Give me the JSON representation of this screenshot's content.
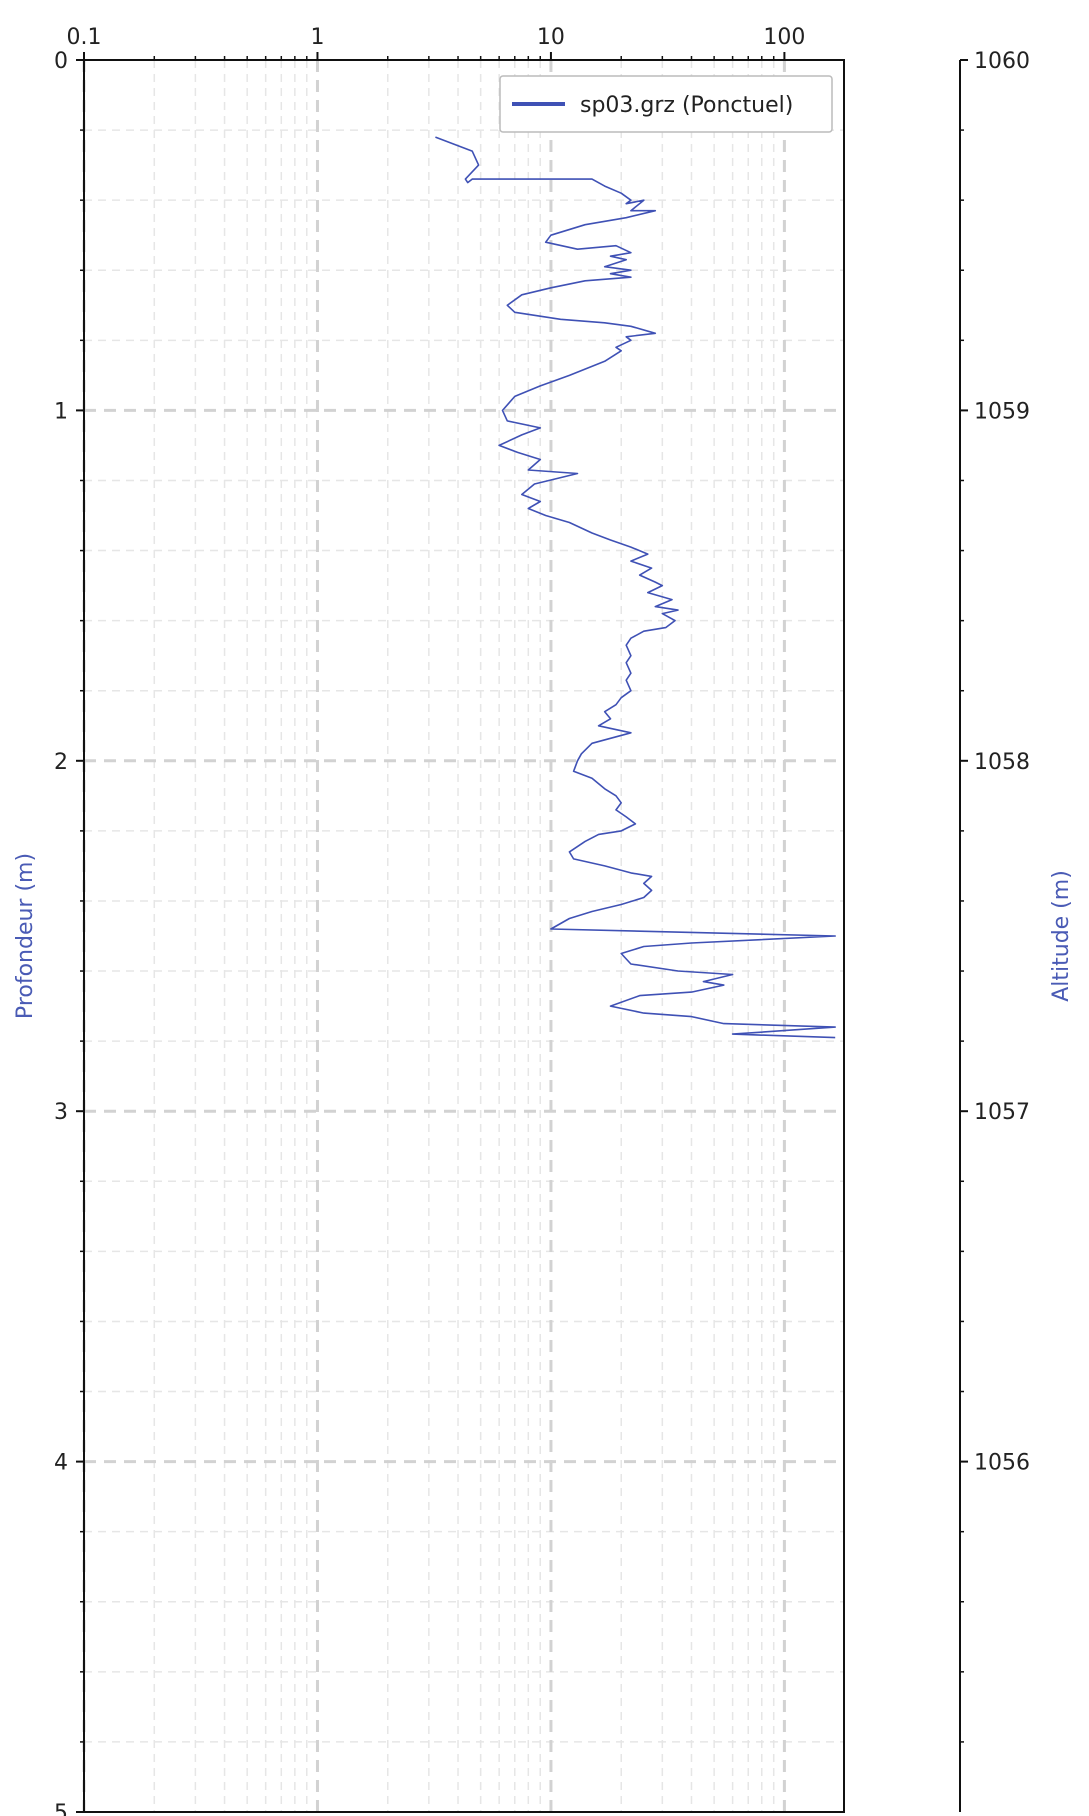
{
  "chart_data": {
    "type": "line",
    "title": "",
    "x_axis": {
      "scale": "log",
      "position": "top",
      "range": [
        0.1,
        180
      ],
      "ticks": [
        0.1,
        1,
        10,
        100
      ],
      "tick_labels": [
        "0.1",
        "1",
        "10",
        "100"
      ],
      "label": ""
    },
    "y_axis_left": {
      "label": "Profondeur (m)",
      "range": [
        0,
        5
      ],
      "inverted": true,
      "ticks": [
        0,
        1,
        2,
        3,
        4,
        5
      ],
      "tick_labels": [
        "0",
        "1",
        "2",
        "3",
        "4",
        "5"
      ]
    },
    "y_axis_right": {
      "label": "Altitude (m)",
      "range": [
        1060,
        1055
      ],
      "ticks": [
        1060,
        1059,
        1058,
        1057,
        1056
      ],
      "tick_labels": [
        "1060",
        "1059",
        "1058",
        "1057",
        "1056"
      ]
    },
    "grid": true,
    "legend": {
      "placement": "top-right"
    },
    "series": [
      {
        "name": "sp03.grz (Ponctuel)",
        "color": "#3f51b5",
        "points": [
          [
            3.2,
            0.22
          ],
          [
            4.6,
            0.26
          ],
          [
            4.9,
            0.3
          ],
          [
            4.3,
            0.34
          ],
          [
            4.4,
            0.35
          ],
          [
            4.6,
            0.34
          ],
          [
            15,
            0.34
          ],
          [
            17,
            0.36
          ],
          [
            20,
            0.38
          ],
          [
            22,
            0.4
          ],
          [
            21,
            0.41
          ],
          [
            25,
            0.4
          ],
          [
            22,
            0.43
          ],
          [
            28,
            0.43
          ],
          [
            21,
            0.45
          ],
          [
            14,
            0.47
          ],
          [
            10,
            0.5
          ],
          [
            9.5,
            0.52
          ],
          [
            13,
            0.54
          ],
          [
            19,
            0.53
          ],
          [
            22,
            0.55
          ],
          [
            18,
            0.56
          ],
          [
            21,
            0.57
          ],
          [
            17,
            0.59
          ],
          [
            22,
            0.6
          ],
          [
            18,
            0.61
          ],
          [
            22,
            0.62
          ],
          [
            14,
            0.63
          ],
          [
            10,
            0.65
          ],
          [
            7.5,
            0.67
          ],
          [
            6.5,
            0.7
          ],
          [
            7,
            0.72
          ],
          [
            11,
            0.74
          ],
          [
            17,
            0.75
          ],
          [
            22,
            0.76
          ],
          [
            28,
            0.78
          ],
          [
            21,
            0.79
          ],
          [
            22,
            0.8
          ],
          [
            19,
            0.82
          ],
          [
            20,
            0.83
          ],
          [
            17,
            0.86
          ],
          [
            12,
            0.9
          ],
          [
            9,
            0.93
          ],
          [
            7,
            0.96
          ],
          [
            6.2,
            1.0
          ],
          [
            6.5,
            1.03
          ],
          [
            9,
            1.05
          ],
          [
            7.5,
            1.07
          ],
          [
            6,
            1.1
          ],
          [
            7.2,
            1.12
          ],
          [
            9,
            1.14
          ],
          [
            8,
            1.17
          ],
          [
            13,
            1.18
          ],
          [
            8.5,
            1.21
          ],
          [
            7.5,
            1.24
          ],
          [
            9,
            1.26
          ],
          [
            8,
            1.28
          ],
          [
            9.5,
            1.3
          ],
          [
            12,
            1.32
          ],
          [
            15,
            1.35
          ],
          [
            18,
            1.37
          ],
          [
            22,
            1.39
          ],
          [
            26,
            1.41
          ],
          [
            22,
            1.43
          ],
          [
            27,
            1.45
          ],
          [
            24,
            1.47
          ],
          [
            28,
            1.49
          ],
          [
            30,
            1.5
          ],
          [
            26,
            1.52
          ],
          [
            33,
            1.54
          ],
          [
            28,
            1.56
          ],
          [
            35,
            1.57
          ],
          [
            30,
            1.58
          ],
          [
            34,
            1.6
          ],
          [
            31,
            1.62
          ],
          [
            25,
            1.63
          ],
          [
            22,
            1.65
          ],
          [
            21,
            1.67
          ],
          [
            22,
            1.7
          ],
          [
            21,
            1.72
          ],
          [
            22,
            1.75
          ],
          [
            21,
            1.77
          ],
          [
            22,
            1.8
          ],
          [
            20,
            1.82
          ],
          [
            19,
            1.84
          ],
          [
            17,
            1.86
          ],
          [
            18,
            1.88
          ],
          [
            16,
            1.9
          ],
          [
            22,
            1.92
          ],
          [
            15,
            1.95
          ],
          [
            13.5,
            1.98
          ],
          [
            13,
            2.0
          ],
          [
            12.5,
            2.03
          ],
          [
            15,
            2.05
          ],
          [
            17,
            2.08
          ],
          [
            19,
            2.1
          ],
          [
            20,
            2.12
          ],
          [
            19,
            2.14
          ],
          [
            21,
            2.16
          ],
          [
            23,
            2.18
          ],
          [
            20,
            2.2
          ],
          [
            16,
            2.21
          ],
          [
            14,
            2.23
          ],
          [
            12,
            2.26
          ],
          [
            12.5,
            2.28
          ],
          [
            17,
            2.3
          ],
          [
            22,
            2.32
          ],
          [
            27,
            2.33
          ],
          [
            25,
            2.35
          ],
          [
            27,
            2.37
          ],
          [
            25,
            2.39
          ],
          [
            20,
            2.41
          ],
          [
            15,
            2.43
          ],
          [
            12,
            2.45
          ],
          [
            10,
            2.48
          ],
          [
            165,
            2.5
          ],
          [
            40,
            2.52
          ],
          [
            25,
            2.53
          ],
          [
            20,
            2.55
          ],
          [
            22,
            2.58
          ],
          [
            35,
            2.6
          ],
          [
            60,
            2.61
          ],
          [
            45,
            2.63
          ],
          [
            55,
            2.64
          ],
          [
            40,
            2.66
          ],
          [
            24,
            2.67
          ],
          [
            18,
            2.7
          ],
          [
            25,
            2.72
          ],
          [
            40,
            2.73
          ],
          [
            55,
            2.75
          ],
          [
            165,
            2.76
          ],
          [
            60,
            2.78
          ],
          [
            165,
            2.79
          ]
        ]
      }
    ]
  }
}
